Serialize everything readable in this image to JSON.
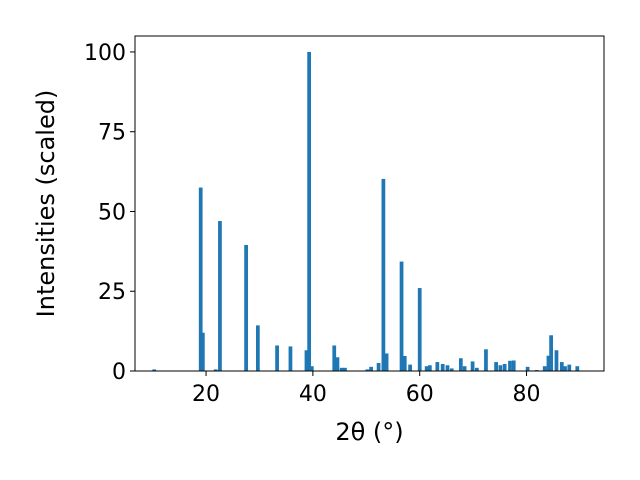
{
  "chart_data": {
    "type": "bar",
    "xlabel": "2θ (°)",
    "ylabel": "Intensities (scaled)",
    "xlim": [
      6.7,
      94.5
    ],
    "ylim": [
      0,
      105
    ],
    "xticks": [
      20,
      40,
      60,
      80
    ],
    "yticks": [
      0,
      25,
      50,
      75,
      100
    ],
    "bar_color": "#1f77b4",
    "bar_width": 0.7,
    "x": [
      10.3,
      19.0,
      19.4,
      21.8,
      22.6,
      27.5,
      29.7,
      33.3,
      35.8,
      38.8,
      39.3,
      39.8,
      44.0,
      44.6,
      45.4,
      46.0,
      50.2,
      50.9,
      52.3,
      53.2,
      53.8,
      56.6,
      57.2,
      58.2,
      60.0,
      61.3,
      61.9,
      63.3,
      64.3,
      65.2,
      66.0,
      67.7,
      68.4,
      69.9,
      70.7,
      72.4,
      74.3,
      75.1,
      75.9,
      76.9,
      77.6,
      80.2,
      81.9,
      83.4,
      84.1,
      84.6,
      85.6,
      86.6,
      87.2,
      88.0,
      89.5
    ],
    "values": [
      0.5,
      57.5,
      12.0,
      0.5,
      47.0,
      39.5,
      14.3,
      8.0,
      7.7,
      6.5,
      100.0,
      1.5,
      8.0,
      4.3,
      1.0,
      1.0,
      0.5,
      1.3,
      2.5,
      60.2,
      5.5,
      34.3,
      4.7,
      2.0,
      26.0,
      1.5,
      1.8,
      2.8,
      2.2,
      1.8,
      0.8,
      4.0,
      1.5,
      3.0,
      1.0,
      6.8,
      2.8,
      1.8,
      2.2,
      3.2,
      3.3,
      1.3,
      0.3,
      1.5,
      4.8,
      11.2,
      6.5,
      2.8,
      1.5,
      2.0,
      1.5
    ]
  }
}
